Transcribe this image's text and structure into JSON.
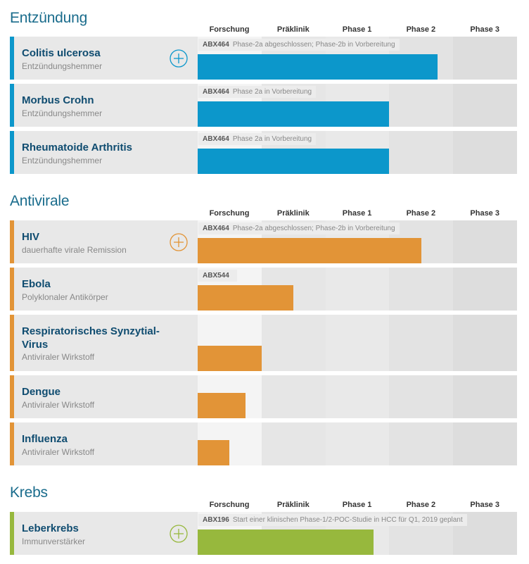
{
  "phases": [
    "Forschung",
    "Präklinik",
    "Phase 1",
    "Phase 2",
    "Phase 3"
  ],
  "colors": {
    "Entzündung": "#0c97cb",
    "Antivirale": "#e29437",
    "Krebs": "#97b83d",
    "phase_bg_light": "#f4f4f4",
    "phase_bg_mid": "#e8e8e8",
    "phase_bg_dark": "#dcdcdc"
  },
  "chart_data": {
    "type": "bar",
    "orientation": "horizontal",
    "x_axis": {
      "categories": [
        "Forschung",
        "Präklinik",
        "Phase 1",
        "Phase 2",
        "Phase 3"
      ],
      "range": [
        0,
        5
      ],
      "unit": "phase"
    },
    "sections": [
      {
        "title": "Entzündung",
        "indications": [
          {
            "name": "Colitis ulcerosa",
            "subtitle": "Entzündungshemmer",
            "compound": "ABX464",
            "status": "Phase-2a abgeschlossen; Phase-2b in Vorbereitung",
            "progress": 3.75,
            "expandable": true
          },
          {
            "name": "Morbus Crohn",
            "subtitle": "Entzündungshemmer",
            "compound": "ABX464",
            "status": "Phase 2a in Vorbereitung",
            "progress": 3.0,
            "expandable": false
          },
          {
            "name": "Rheumatoide Arthritis",
            "subtitle": "Entzündungshemmer",
            "compound": "ABX464",
            "status": "Phase 2a in Vorbereitung",
            "progress": 3.0,
            "expandable": false
          }
        ]
      },
      {
        "title": "Antivirale",
        "indications": [
          {
            "name": "HIV",
            "subtitle": "dauerhafte virale Remission",
            "compound": "ABX464",
            "status": "Phase-2a abgeschlossen; Phase-2b in Vorbereitung",
            "progress": 3.5,
            "expandable": true
          },
          {
            "name": "Ebola",
            "subtitle": "Polyklonaler Antikörper",
            "compound": "ABX544",
            "status": "",
            "progress": 1.5,
            "expandable": false
          },
          {
            "name": "Respiratorisches Synzytial-Virus",
            "subtitle": "Antiviraler Wirkstoff",
            "compound": "",
            "status": "",
            "progress": 1.0,
            "expandable": false
          },
          {
            "name": "Dengue",
            "subtitle": "Antiviraler Wirkstoff",
            "compound": "",
            "status": "",
            "progress": 0.75,
            "expandable": false
          },
          {
            "name": "Influenza",
            "subtitle": "Antiviraler Wirkstoff",
            "compound": "",
            "status": "",
            "progress": 0.5,
            "expandable": false
          }
        ]
      },
      {
        "title": "Krebs",
        "indications": [
          {
            "name": "Leberkrebs",
            "subtitle": "Immunverstärker",
            "compound": "ABX196",
            "status": "Start einer klinischen Phase-1/2-POC-Studie in HCC für Q1, 2019 geplant",
            "progress": 2.75,
            "expandable": true
          }
        ]
      }
    ]
  }
}
